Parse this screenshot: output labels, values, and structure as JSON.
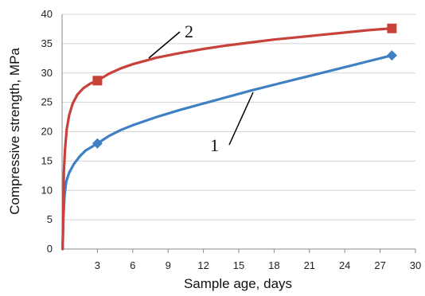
{
  "chart_data": {
    "type": "line",
    "title": "",
    "xlabel": "Sample age, days",
    "ylabel": "Compressive strength, MPa",
    "xlim": [
      0,
      30
    ],
    "ylim": [
      0,
      40
    ],
    "x_ticks": [
      "3",
      "6",
      "9",
      "12",
      "15",
      "18",
      "21",
      "24",
      "27",
      "30"
    ],
    "y_ticks": [
      "0",
      "5",
      "10",
      "15",
      "20",
      "25",
      "30",
      "35",
      "40"
    ],
    "grid": "horizontal",
    "legend": "none",
    "series": [
      {
        "label": "1",
        "color": "#3f7fc4",
        "marker": "diamond",
        "points": [
          {
            "x": 0,
            "y": 0
          },
          {
            "x": 3,
            "y": 18
          },
          {
            "x": 28,
            "y": 33
          }
        ],
        "curve": [
          [
            0.05,
            0
          ],
          [
            0.1,
            5
          ],
          [
            0.2,
            9
          ],
          [
            0.35,
            11.5
          ],
          [
            0.6,
            13
          ],
          [
            1,
            14.5
          ],
          [
            1.5,
            15.8
          ],
          [
            2,
            16.8
          ],
          [
            2.5,
            17.4
          ],
          [
            3,
            18
          ],
          [
            4,
            19.3
          ],
          [
            5,
            20.3
          ],
          [
            6,
            21.1
          ],
          [
            8,
            22.5
          ],
          [
            10,
            23.7
          ],
          [
            12,
            24.8
          ],
          [
            14,
            25.9
          ],
          [
            16,
            27
          ],
          [
            18,
            28
          ],
          [
            20,
            29
          ],
          [
            22,
            30
          ],
          [
            24,
            31
          ],
          [
            26,
            32
          ],
          [
            28,
            33
          ]
        ]
      },
      {
        "label": "2",
        "color": "#c8413a",
        "marker": "square",
        "points": [
          {
            "x": 0,
            "y": 0
          },
          {
            "x": 3,
            "y": 28.7
          },
          {
            "x": 28,
            "y": 37.6
          }
        ],
        "curve": [
          [
            0.05,
            0
          ],
          [
            0.1,
            6
          ],
          [
            0.15,
            13
          ],
          [
            0.25,
            17
          ],
          [
            0.4,
            20.5
          ],
          [
            0.6,
            22.8
          ],
          [
            0.9,
            24.8
          ],
          [
            1.3,
            26.3
          ],
          [
            1.8,
            27.4
          ],
          [
            2.4,
            28.2
          ],
          [
            3,
            28.7
          ],
          [
            4,
            29.9
          ],
          [
            5,
            30.8
          ],
          [
            6,
            31.5
          ],
          [
            8,
            32.6
          ],
          [
            10,
            33.4
          ],
          [
            12,
            34.1
          ],
          [
            14,
            34.7
          ],
          [
            16,
            35.2
          ],
          [
            18,
            35.7
          ],
          [
            20,
            36.1
          ],
          [
            22,
            36.5
          ],
          [
            24,
            36.9
          ],
          [
            26,
            37.3
          ],
          [
            28,
            37.6
          ]
        ]
      }
    ]
  }
}
